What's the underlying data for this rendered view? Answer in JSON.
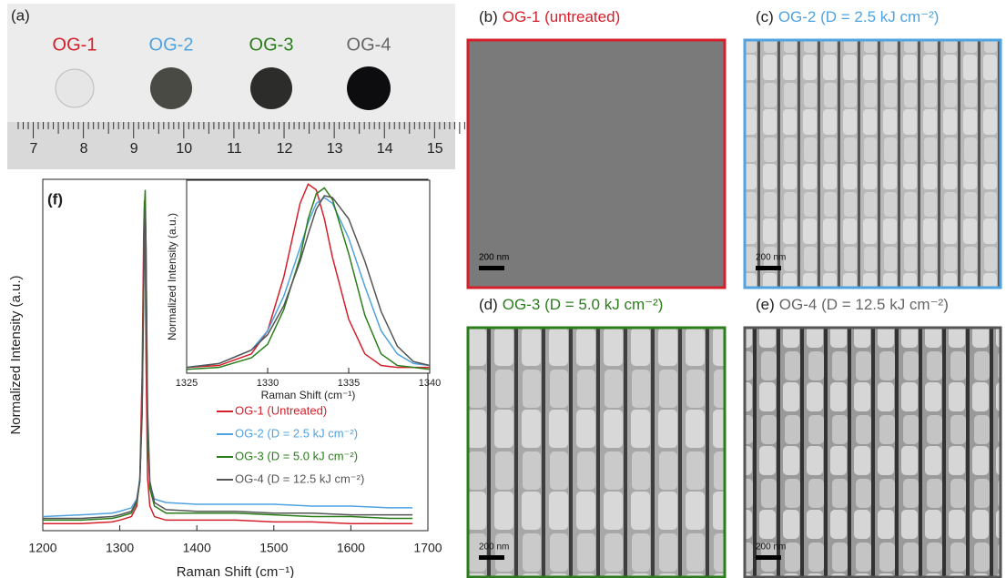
{
  "panel_a": {
    "label": "(a)",
    "samples": [
      "OG-1",
      "OG-2",
      "OG-3",
      "OG-4"
    ],
    "ruler": [
      "7",
      "8",
      "9",
      "10",
      "11",
      "12",
      "13",
      "14",
      "15"
    ]
  },
  "sem_panels": [
    {
      "label": "(b)",
      "title": "OG-1 (untreated)",
      "scale_bar": "200 nm"
    },
    {
      "label": "(c)",
      "title": "OG-2 (D = 2.5 kJ cm⁻²)",
      "scale_bar": "200 nm"
    },
    {
      "label": "(d)",
      "title": "OG-3 (D = 5.0 kJ cm⁻²)",
      "scale_bar": "200 nm"
    },
    {
      "label": "(e)",
      "title": "OG-4 (D = 12.5 kJ cm⁻²)",
      "scale_bar": "200 nm"
    }
  ],
  "chart_data": {
    "type": "line",
    "label": "(f)",
    "xlabel": "Raman Shift (cm⁻¹)",
    "ylabel": "Normalized Intensity (a.u.)",
    "xlim": [
      1200,
      1700
    ],
    "xticks": [
      1200,
      1300,
      1400,
      1500,
      1600,
      1700
    ],
    "ylim": [
      0,
      1
    ],
    "x": [
      1200,
      1250,
      1290,
      1300,
      1315,
      1322,
      1326,
      1329,
      1331,
      1332,
      1333,
      1334,
      1336,
      1339,
      1345,
      1360,
      1400,
      1450,
      1500,
      1550,
      1600,
      1650,
      1680
    ],
    "series": [
      {
        "name": "OG-1 (Untreated)",
        "color": "#d4202a",
        "values": [
          0.02,
          0.02,
          0.025,
          0.03,
          0.04,
          0.07,
          0.15,
          0.45,
          0.85,
          0.94,
          0.8,
          0.5,
          0.15,
          0.07,
          0.04,
          0.03,
          0.03,
          0.03,
          0.025,
          0.025,
          0.02,
          0.02,
          0.02
        ]
      },
      {
        "name": "OG-2 (D = 2.5 kJ cm⁻²)",
        "color": "#4fa3e0",
        "values": [
          0.04,
          0.045,
          0.05,
          0.055,
          0.065,
          0.09,
          0.15,
          0.35,
          0.7,
          0.88,
          0.93,
          0.75,
          0.3,
          0.13,
          0.09,
          0.08,
          0.075,
          0.075,
          0.075,
          0.07,
          0.07,
          0.065,
          0.065
        ]
      },
      {
        "name": "OG-3 (D = 5.0 kJ cm⁻²)",
        "color": "#2a7d1a",
        "values": [
          0.03,
          0.03,
          0.035,
          0.04,
          0.05,
          0.08,
          0.14,
          0.35,
          0.75,
          0.92,
          0.97,
          0.8,
          0.3,
          0.12,
          0.07,
          0.05,
          0.05,
          0.05,
          0.045,
          0.04,
          0.04,
          0.035,
          0.035
        ]
      },
      {
        "name": "OG-4 (D = 12.5 kJ cm⁻²)",
        "color": "#555555",
        "values": [
          0.035,
          0.035,
          0.04,
          0.045,
          0.055,
          0.085,
          0.14,
          0.33,
          0.68,
          0.85,
          0.92,
          0.82,
          0.35,
          0.14,
          0.08,
          0.06,
          0.055,
          0.055,
          0.05,
          0.05,
          0.045,
          0.045,
          0.045
        ]
      }
    ],
    "inset": {
      "type": "line",
      "xlabel": "Raman Shift (cm⁻¹)",
      "ylabel": "Normalized Intensity (a.u.)",
      "xlim": [
        1325,
        1340
      ],
      "xticks": [
        1325,
        1330,
        1335,
        1340
      ],
      "ylim": [
        0,
        1
      ],
      "x": [
        1325,
        1327,
        1329,
        1330,
        1331,
        1332,
        1332.5,
        1333,
        1333.5,
        1334,
        1335,
        1336,
        1337,
        1338,
        1339,
        1340
      ],
      "series": [
        {
          "color": "#d4202a",
          "values": [
            0.03,
            0.04,
            0.1,
            0.22,
            0.5,
            0.88,
            0.98,
            0.95,
            0.8,
            0.6,
            0.28,
            0.1,
            0.04,
            0.03,
            0.03,
            0.03
          ]
        },
        {
          "color": "#4fa3e0",
          "values": [
            0.03,
            0.05,
            0.12,
            0.22,
            0.4,
            0.65,
            0.78,
            0.88,
            0.91,
            0.88,
            0.7,
            0.45,
            0.22,
            0.1,
            0.05,
            0.04
          ]
        },
        {
          "color": "#2a7d1a",
          "values": [
            0.02,
            0.03,
            0.08,
            0.15,
            0.33,
            0.6,
            0.8,
            0.93,
            0.96,
            0.9,
            0.62,
            0.3,
            0.1,
            0.04,
            0.03,
            0.02
          ]
        },
        {
          "color": "#555555",
          "values": [
            0.03,
            0.05,
            0.12,
            0.2,
            0.35,
            0.58,
            0.72,
            0.85,
            0.92,
            0.91,
            0.8,
            0.58,
            0.32,
            0.14,
            0.06,
            0.04
          ]
        }
      ]
    }
  }
}
